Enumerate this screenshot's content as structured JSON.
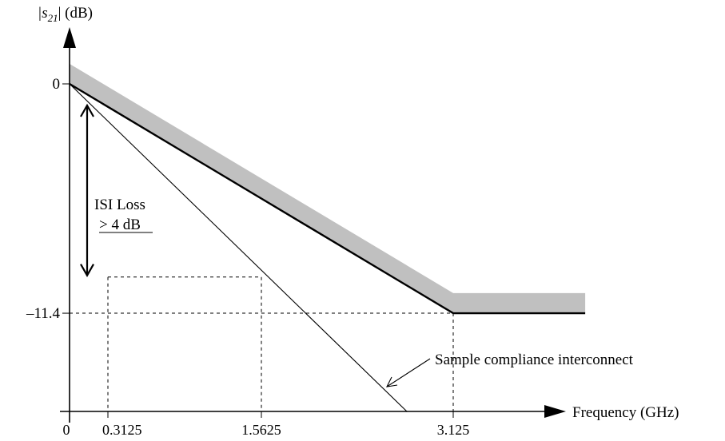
{
  "chart_data": {
    "type": "line",
    "ylabel_main": "|s",
    "ylabel_sub": "21",
    "ylabel_tail": "| (dB)",
    "xlabel": "Frequency (GHz)",
    "x_ticks": [
      {
        "value": 0,
        "label": "0"
      },
      {
        "value": 0.3125,
        "label": "0.3125"
      },
      {
        "value": 1.5625,
        "label": "1.5625"
      },
      {
        "value": 3.125,
        "label": "3.125"
      }
    ],
    "y_ticks": [
      {
        "value": 0,
        "label": "0"
      },
      {
        "value": -11.4,
        "label": "–11.4"
      }
    ],
    "series": [
      {
        "kind": "mask",
        "x": [
          0,
          3.125,
          3.125,
          4.2
        ],
        "y": [
          0,
          -11.4,
          -11.4,
          -11.4
        ],
        "band_upper_offset_db": 1.0
      },
      {
        "name": "Sample compliance interconnect",
        "kind": "interconnect",
        "x": [
          0,
          2.75
        ],
        "y": [
          0,
          -16.3
        ]
      }
    ],
    "reference_levels": {
      "isi_floor_db": -9.6,
      "isi_left_f": 0.3125,
      "isi_right_f": 1.5625
    },
    "annotations": {
      "isi_line1": "ISI Loss",
      "isi_line2": "> 4 dB",
      "interconnect_label": "Sample compliance interconnect"
    },
    "colors": {
      "band": "#c0c0c0",
      "line": "#000000"
    }
  }
}
